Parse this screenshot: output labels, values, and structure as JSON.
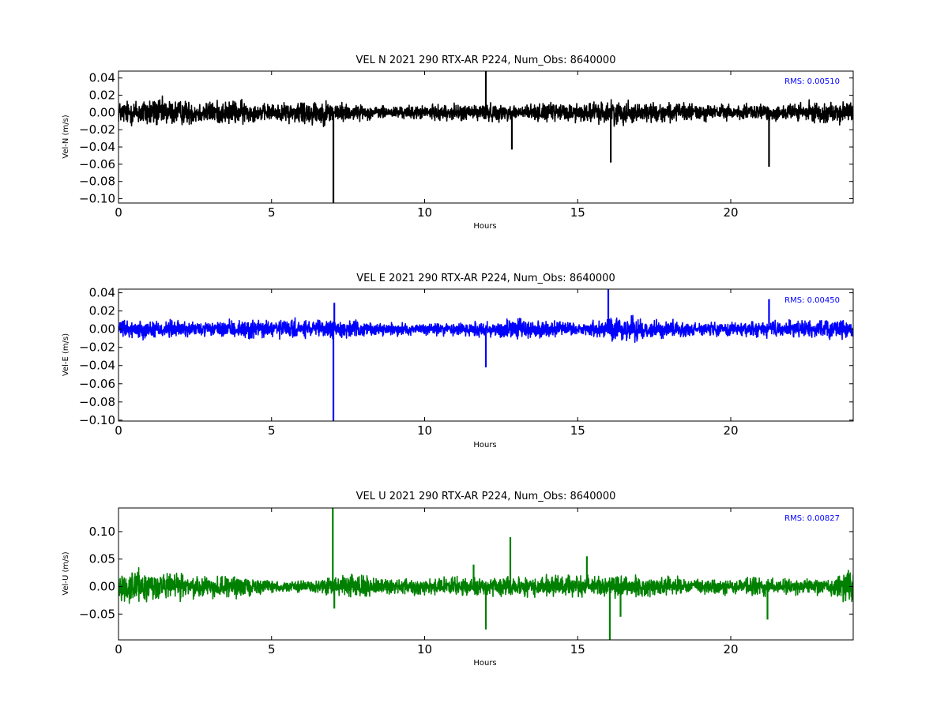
{
  "chart_data": [
    {
      "type": "line",
      "title": "VEL N 2021 290 RTX-AR  P224, Num_Obs: 8640000",
      "xlabel": "Hours",
      "ylabel": "Vel-N (m/s)",
      "xlim": [
        0,
        24
      ],
      "ylim": [
        -0.105,
        0.048
      ],
      "xticks": [
        0,
        5,
        10,
        15,
        20
      ],
      "xtick_labels": [
        "0",
        "5",
        "10",
        "15",
        "20"
      ],
      "yticks": [
        0.04,
        0.02,
        0.0,
        -0.02,
        -0.04,
        -0.06,
        -0.08,
        -0.1
      ],
      "ytick_labels": [
        "0.04",
        "0.02",
        "0.00",
        "−0.02",
        "−0.04",
        "−0.06",
        "−0.08",
        "−0.10"
      ],
      "annotation": "RMS:  0.00510",
      "grid": false,
      "color": "#000000",
      "noise_envelope": [
        {
          "x": 0.0,
          "amp": 0.016
        },
        {
          "x": 1.0,
          "amp": 0.022
        },
        {
          "x": 2.0,
          "amp": 0.018
        },
        {
          "x": 3.0,
          "amp": 0.016
        },
        {
          "x": 4.0,
          "amp": 0.018
        },
        {
          "x": 4.5,
          "amp": 0.012
        },
        {
          "x": 5.5,
          "amp": 0.013
        },
        {
          "x": 6.0,
          "amp": 0.02
        },
        {
          "x": 7.0,
          "amp": 0.016
        },
        {
          "x": 8.0,
          "amp": 0.01
        },
        {
          "x": 9.0,
          "amp": 0.009
        },
        {
          "x": 10.0,
          "amp": 0.01
        },
        {
          "x": 11.0,
          "amp": 0.012
        },
        {
          "x": 12.0,
          "amp": 0.013
        },
        {
          "x": 13.0,
          "amp": 0.011
        },
        {
          "x": 14.0,
          "amp": 0.013
        },
        {
          "x": 15.0,
          "amp": 0.014
        },
        {
          "x": 16.5,
          "amp": 0.018
        },
        {
          "x": 17.0,
          "amp": 0.014
        },
        {
          "x": 18.0,
          "amp": 0.014
        },
        {
          "x": 20.0,
          "amp": 0.011
        },
        {
          "x": 22.0,
          "amp": 0.013
        },
        {
          "x": 24.0,
          "amp": 0.016
        }
      ],
      "spikes": [
        {
          "x": 7.02,
          "y": -0.105
        },
        {
          "x": 12.0,
          "y": 0.048
        },
        {
          "x": 12.85,
          "y": -0.043
        },
        {
          "x": 16.08,
          "y": -0.058
        },
        {
          "x": 21.25,
          "y": -0.063
        }
      ]
    },
    {
      "type": "line",
      "title": "VEL E 2021 290 RTX-AR  P224, Num_Obs: 8640000",
      "xlabel": "Hours",
      "ylabel": "Vel-E (m/s)",
      "xlim": [
        0,
        24
      ],
      "ylim": [
        -0.101,
        0.044
      ],
      "xticks": [
        0,
        5,
        10,
        15,
        20
      ],
      "xtick_labels": [
        "0",
        "5",
        "10",
        "15",
        "20"
      ],
      "yticks": [
        0.04,
        0.02,
        0.0,
        -0.02,
        -0.04,
        -0.06,
        -0.08,
        -0.1
      ],
      "ytick_labels": [
        "0.04",
        "0.02",
        "0.00",
        "−0.02",
        "−0.04",
        "−0.06",
        "−0.08",
        "−0.10"
      ],
      "annotation": "RMS:  0.00450",
      "grid": false,
      "color": "#0000ff",
      "noise_envelope": [
        {
          "x": 0.0,
          "amp": 0.011
        },
        {
          "x": 1.5,
          "amp": 0.013
        },
        {
          "x": 3.0,
          "amp": 0.009
        },
        {
          "x": 4.5,
          "amp": 0.014
        },
        {
          "x": 6.0,
          "amp": 0.012
        },
        {
          "x": 7.5,
          "amp": 0.012
        },
        {
          "x": 8.5,
          "amp": 0.008
        },
        {
          "x": 10.0,
          "amp": 0.008
        },
        {
          "x": 12.0,
          "amp": 0.012
        },
        {
          "x": 13.0,
          "amp": 0.015
        },
        {
          "x": 14.0,
          "amp": 0.012
        },
        {
          "x": 15.0,
          "amp": 0.008
        },
        {
          "x": 16.5,
          "amp": 0.018
        },
        {
          "x": 17.5,
          "amp": 0.012
        },
        {
          "x": 19.0,
          "amp": 0.009
        },
        {
          "x": 21.0,
          "amp": 0.01
        },
        {
          "x": 24.0,
          "amp": 0.014
        }
      ],
      "spikes": [
        {
          "x": 7.02,
          "y": -0.101
        },
        {
          "x": 7.05,
          "y": 0.029
        },
        {
          "x": 12.0,
          "y": -0.042
        },
        {
          "x": 16.0,
          "y": 0.044
        },
        {
          "x": 21.25,
          "y": 0.033
        }
      ]
    },
    {
      "type": "line",
      "title": "VEL U 2021 290 RTX-AR  P224, Num_Obs: 8640000",
      "xlabel": "Hours",
      "ylabel": "Vel-U (m/s)",
      "xlim": [
        0,
        24
      ],
      "ylim": [
        -0.097,
        0.143
      ],
      "xticks": [
        0,
        5,
        10,
        15,
        20
      ],
      "xtick_labels": [
        "0",
        "5",
        "10",
        "15",
        "20"
      ],
      "yticks": [
        0.1,
        0.05,
        0.0,
        -0.05
      ],
      "ytick_labels": [
        "0.10",
        "0.05",
        "0.00",
        "−0.05"
      ],
      "annotation": "RMS:  0.00827",
      "grid": false,
      "color": "#008000",
      "noise_envelope": [
        {
          "x": 0.0,
          "amp": 0.028
        },
        {
          "x": 0.9,
          "amp": 0.04
        },
        {
          "x": 1.5,
          "amp": 0.03
        },
        {
          "x": 2.5,
          "amp": 0.025
        },
        {
          "x": 4.0,
          "amp": 0.022
        },
        {
          "x": 5.0,
          "amp": 0.012
        },
        {
          "x": 6.5,
          "amp": 0.014
        },
        {
          "x": 7.5,
          "amp": 0.026
        },
        {
          "x": 9.0,
          "amp": 0.016
        },
        {
          "x": 11.0,
          "amp": 0.02
        },
        {
          "x": 13.0,
          "amp": 0.02
        },
        {
          "x": 15.0,
          "amp": 0.026
        },
        {
          "x": 17.0,
          "amp": 0.022
        },
        {
          "x": 19.0,
          "amp": 0.018
        },
        {
          "x": 21.0,
          "amp": 0.02
        },
        {
          "x": 23.0,
          "amp": 0.016
        },
        {
          "x": 23.6,
          "amp": 0.03
        },
        {
          "x": 24.0,
          "amp": 0.042
        }
      ],
      "spikes": [
        {
          "x": 7.0,
          "y": 0.143
        },
        {
          "x": 7.05,
          "y": -0.04
        },
        {
          "x": 12.0,
          "y": -0.078
        },
        {
          "x": 11.6,
          "y": 0.04
        },
        {
          "x": 12.8,
          "y": 0.09
        },
        {
          "x": 15.3,
          "y": 0.055
        },
        {
          "x": 16.05,
          "y": -0.097
        },
        {
          "x": 16.4,
          "y": -0.055
        },
        {
          "x": 21.2,
          "y": -0.06
        }
      ]
    }
  ]
}
